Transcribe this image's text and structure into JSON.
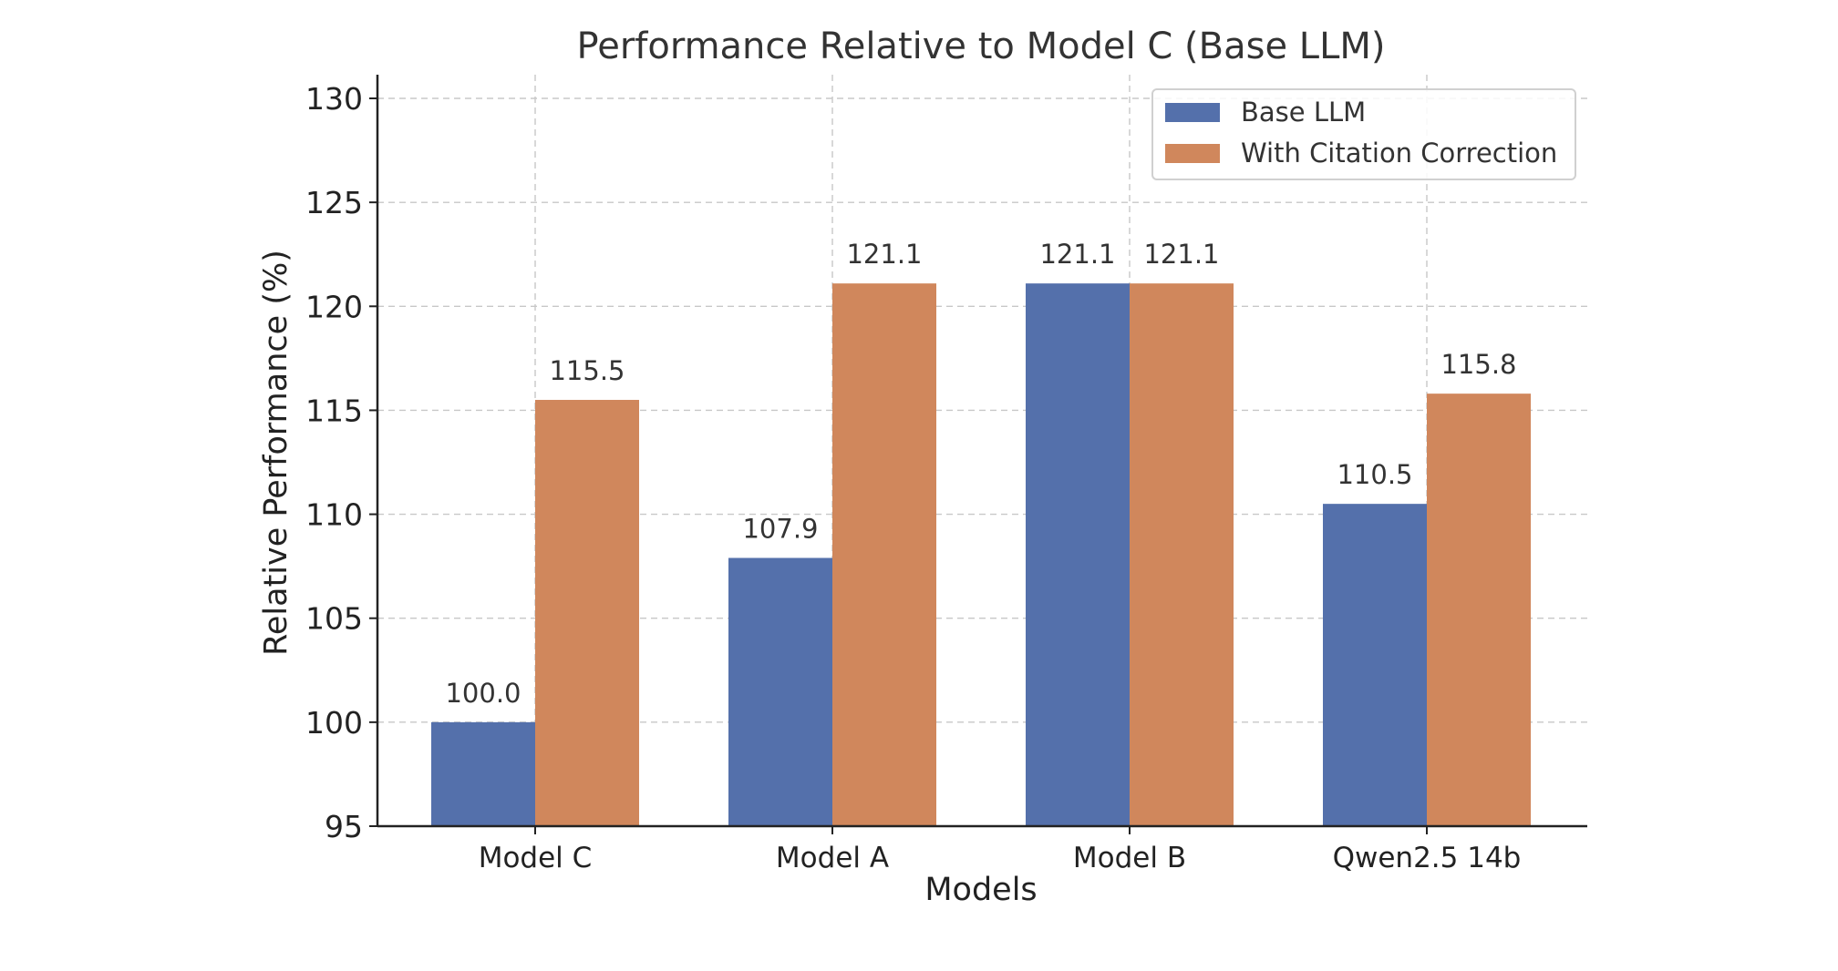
{
  "chart_data": {
    "type": "bar",
    "title": "Performance Relative to Model C (Base LLM)",
    "xlabel": "Models",
    "ylabel": "Relative Performance (%)",
    "categories": [
      "Model C",
      "Model A",
      "Model B",
      "Qwen2.5 14b"
    ],
    "series": [
      {
        "name": "Base LLM",
        "color": "#5470ab",
        "values": [
          100.0,
          107.9,
          121.1,
          110.5
        ],
        "labels": [
          "100.0",
          "107.9",
          "121.1",
          "110.5"
        ]
      },
      {
        "name": "With Citation Correction",
        "color": "#d0875c",
        "values": [
          115.5,
          121.1,
          121.1,
          115.8
        ],
        "labels": [
          "115.5",
          "121.1",
          "121.1",
          "115.8"
        ]
      }
    ],
    "ylim": [
      95,
      130
    ],
    "yticks": [
      95,
      100,
      105,
      110,
      115,
      120,
      125,
      130
    ],
    "grid": true,
    "legend_position": "top-right"
  }
}
